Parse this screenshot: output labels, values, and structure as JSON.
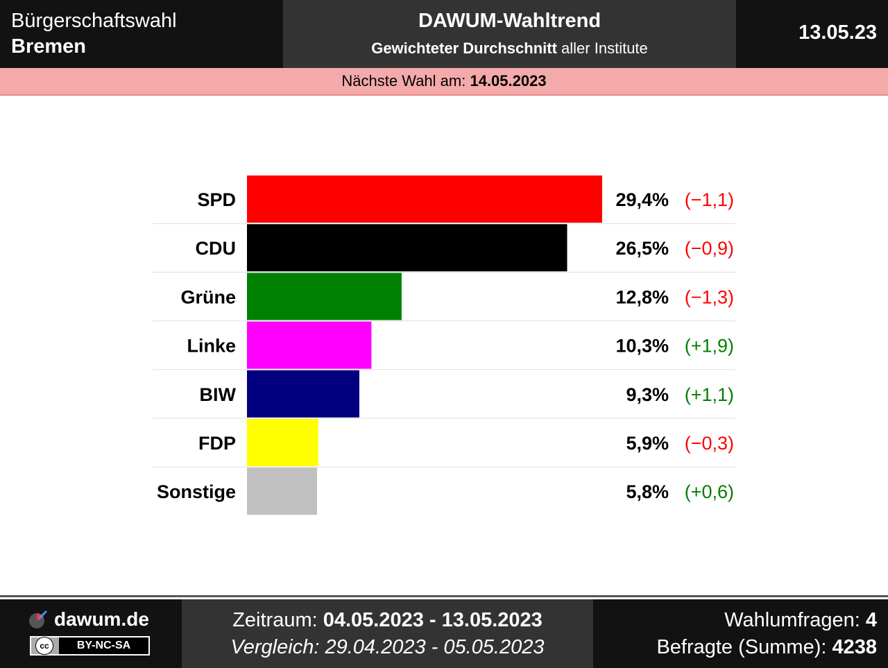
{
  "header": {
    "region_type": "Bürgerschaftswahl",
    "region_name": "Bremen",
    "title": "DAWUM-Wahltrend",
    "subtitle_bold": "Gewichteter Durchschnitt",
    "subtitle_rest": "aller Institute",
    "date": "13.05.23"
  },
  "next_election": {
    "label": "Nächste Wahl am:",
    "date": "14.05.2023"
  },
  "chart_data": {
    "type": "bar",
    "orientation": "horizontal",
    "categories": [
      "SPD",
      "CDU",
      "Grüne",
      "Linke",
      "BIW",
      "FDP",
      "Sonstige"
    ],
    "values": [
      29.4,
      26.5,
      12.8,
      10.3,
      9.3,
      5.9,
      5.8
    ],
    "value_labels": [
      "29,4%",
      "26,5%",
      "12,8%",
      "10,3%",
      "9,3%",
      "5,9%",
      "5,8%"
    ],
    "changes": [
      -1.1,
      -0.9,
      -1.3,
      1.9,
      1.1,
      -0.3,
      0.6
    ],
    "change_labels": [
      "(−1,1)",
      "(−0,9)",
      "(−1,3)",
      "(+1,9)",
      "(+1,1)",
      "(−0,3)",
      "(+0,6)"
    ],
    "colors": [
      "#ff0000",
      "#000000",
      "#008000",
      "#ff00ff",
      "#000080",
      "#ffff00",
      "#c0c0c0"
    ],
    "negative_color": "#ff0000",
    "positive_color": "#008000",
    "xlim": [
      0,
      29.4
    ],
    "grid": false
  },
  "footer": {
    "brand": "dawum.de",
    "license": "BY-NC-SA",
    "license_icon": "cc",
    "period_label": "Zeitraum:",
    "period_value": "04.05.2023 - 13.05.2023",
    "compare_text": "Vergleich: 29.04.2023 - 05.05.2023",
    "polls_label": "Wahlumfragen:",
    "polls_value": "4",
    "respondents_label": "Befragte (Summe):",
    "respondents_value": "4238"
  }
}
